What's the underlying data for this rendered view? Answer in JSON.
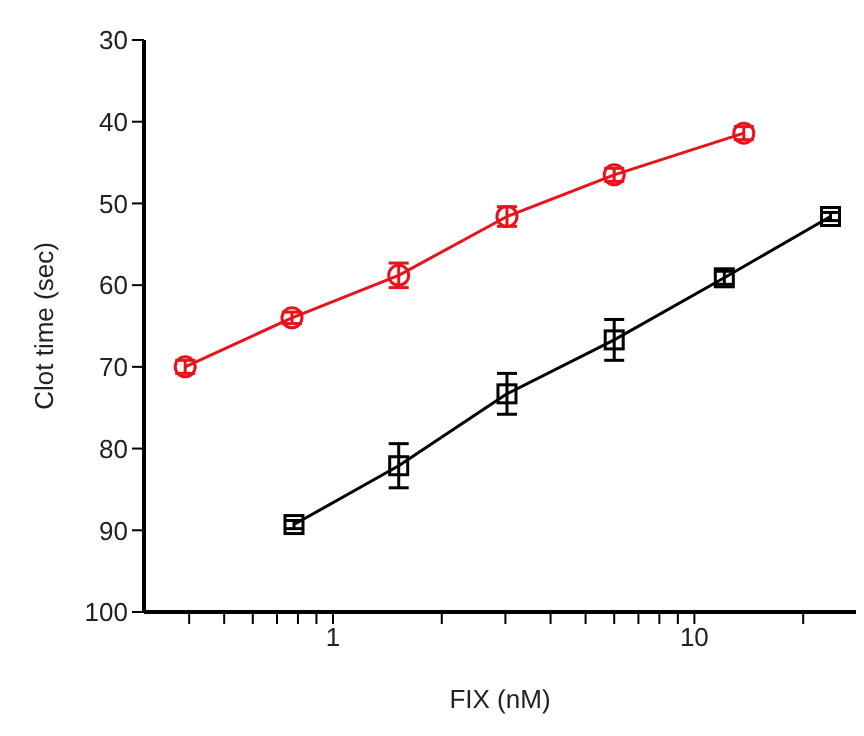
{
  "chart_data": {
    "type": "line",
    "xlabel": "FIX (nM)",
    "ylabel": "Clot time (sec)",
    "log": "x",
    "xlim": [
      0.3,
      28
    ],
    "xticks": [
      {
        "value": 0.4,
        "label": null
      },
      {
        "value": 0.5,
        "label": null
      },
      {
        "value": 0.6,
        "label": null
      },
      {
        "value": 0.7,
        "label": null
      },
      {
        "value": 0.8,
        "label": null
      },
      {
        "value": 0.9,
        "label": null
      },
      1,
      {
        "value": 2,
        "label": null
      },
      {
        "value": 3,
        "label": null
      },
      {
        "value": 4,
        "label": null
      },
      {
        "value": 5,
        "label": null
      },
      {
        "value": 6,
        "label": null
      },
      {
        "value": 7,
        "label": null
      },
      {
        "value": 8,
        "label": null
      },
      {
        "value": 9,
        "label": null
      },
      10,
      {
        "value": 20,
        "label": null
      }
    ],
    "ylim": [
      100,
      30
    ],
    "yticks": [
      30,
      40,
      50,
      60,
      70,
      80,
      90,
      100
    ],
    "grid": false,
    "line_style": "solid",
    "series": [
      {
        "color": "#e8131b",
        "marker": "circle",
        "x": [
          0.39,
          0.77,
          1.52,
          3.03,
          6.0,
          13.7
        ],
        "values": [
          70,
          64,
          58.8,
          51.6,
          46.5,
          41.4
        ],
        "errors": [
          0.8,
          0.7,
          1.5,
          1.2,
          0.8,
          0.8
        ]
      },
      {
        "color": "#000000",
        "marker": "square",
        "x": [
          0.78,
          1.52,
          3.03,
          6.0,
          12.1,
          23.8
        ],
        "values": [
          89.3,
          82.1,
          73.3,
          66.7,
          59.1,
          51.6
        ],
        "errors": [
          0.5,
          2.7,
          2.5,
          2.5,
          0.8,
          0.5
        ]
      }
    ]
  }
}
